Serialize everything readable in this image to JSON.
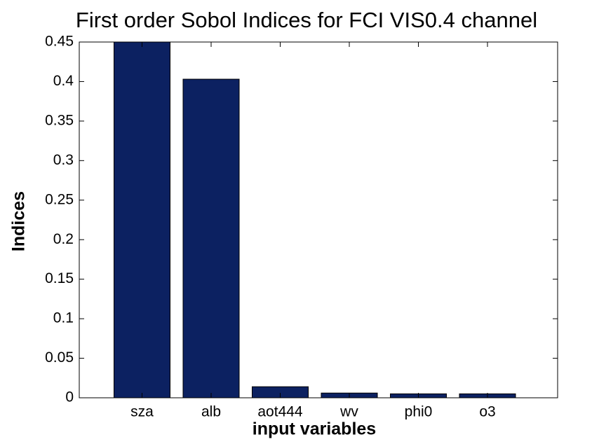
{
  "chart_data": {
    "type": "bar",
    "title": "First order Sobol Indices for FCI VIS0.4 channel",
    "x_label": "input variables",
    "y_label": "Indices",
    "categories": [
      "sza",
      "alb",
      "aot444",
      "wv",
      "phi0",
      "o3"
    ],
    "values": [
      0.45,
      0.403,
      0.014,
      0.006,
      0.005,
      0.005
    ],
    "color": "#0c2161",
    "ylim": [
      0,
      0.45
    ],
    "yticks": [
      0,
      0.05,
      0.1,
      0.15,
      0.2,
      0.25,
      0.3,
      0.35,
      0.4,
      0.45
    ],
    "grid": false
  }
}
